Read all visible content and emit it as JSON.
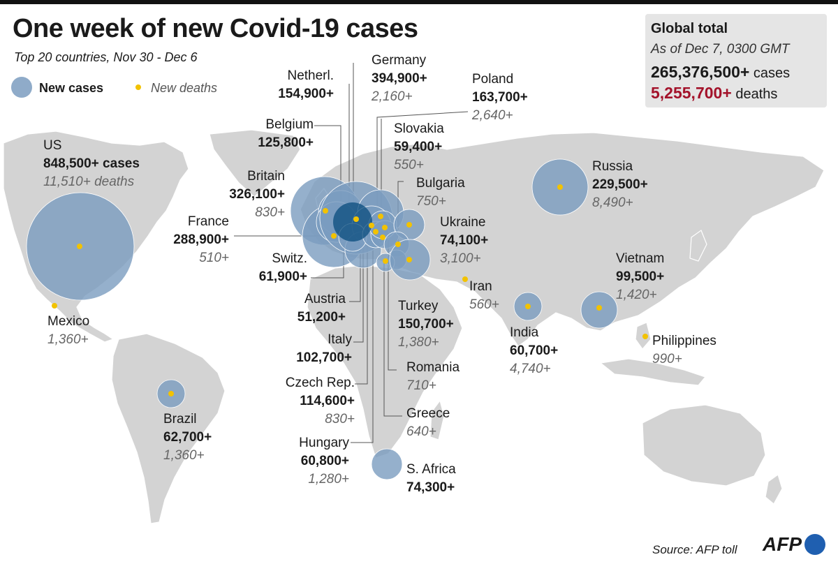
{
  "title": "One week of new Covid-19 cases",
  "subtitle": "Top 20 countries, Nov 30 - Dec 6",
  "legend": {
    "cases": "New cases",
    "deaths": "New deaths"
  },
  "global": {
    "heading": "Global total",
    "asof": "As of Dec 7, 0300 GMT",
    "cases_value": "265,376,500+",
    "cases_word": "cases",
    "deaths_value": "5,255,700+",
    "deaths_word": "deaths"
  },
  "colors": {
    "bubble": "#7b9cbf",
    "death_dot": "#f2c200",
    "land": "#d3d3d3",
    "deaths_red": "#a3122a"
  },
  "countries": {
    "us": {
      "name": "US",
      "cases": "848,500+ cases",
      "deaths": "11,510+ deaths"
    },
    "mexico": {
      "name": "Mexico",
      "deaths": "1,360+"
    },
    "brazil": {
      "name": "Brazil",
      "cases": "62,700+",
      "deaths": "1,360+"
    },
    "netherlands": {
      "name": "Netherl.",
      "cases": "154,900+"
    },
    "belgium": {
      "name": "Belgium",
      "cases": "125,800+"
    },
    "britain": {
      "name": "Britain",
      "cases": "326,100+",
      "deaths": "830+"
    },
    "france": {
      "name": "France",
      "cases": "288,900+",
      "deaths": "510+"
    },
    "switzerland": {
      "name": "Switz.",
      "cases": "61,900+"
    },
    "austria": {
      "name": "Austria",
      "cases": "51,200+"
    },
    "italy": {
      "name": "Italy",
      "cases": "102,700+"
    },
    "czech": {
      "name": "Czech Rep.",
      "cases": "114,600+",
      "deaths": "830+"
    },
    "hungary": {
      "name": "Hungary",
      "cases": "60,800+",
      "deaths": "1,280+"
    },
    "germany": {
      "name": "Germany",
      "cases": "394,900+",
      "deaths": "2,160+"
    },
    "poland": {
      "name": "Poland",
      "cases": "163,700+",
      "deaths": "2,640+"
    },
    "slovakia": {
      "name": "Slovakia",
      "cases": "59,400+",
      "deaths": "550+"
    },
    "bulgaria": {
      "name": "Bulgaria",
      "deaths": "750+"
    },
    "ukraine": {
      "name": "Ukraine",
      "cases": "74,100+",
      "deaths": "3,100+"
    },
    "iran": {
      "name": "Iran",
      "deaths": "560+"
    },
    "turkey": {
      "name": "Turkey",
      "cases": "150,700+",
      "deaths": "1,380+"
    },
    "romania": {
      "name": "Romania",
      "deaths": "710+"
    },
    "greece": {
      "name": "Greece",
      "deaths": "640+"
    },
    "safrica": {
      "name": "S. Africa",
      "cases": "74,300+"
    },
    "russia": {
      "name": "Russia",
      "cases": "229,500+",
      "deaths": "8,490+"
    },
    "vietnam": {
      "name": "Vietnam",
      "cases": "99,500+",
      "deaths": "1,420+"
    },
    "india": {
      "name": "India",
      "cases": "60,700+",
      "deaths": "4,740+"
    },
    "philippines": {
      "name": "Philippines",
      "deaths": "990+"
    }
  },
  "source": "Source: AFP toll",
  "logo": "AFP"
}
